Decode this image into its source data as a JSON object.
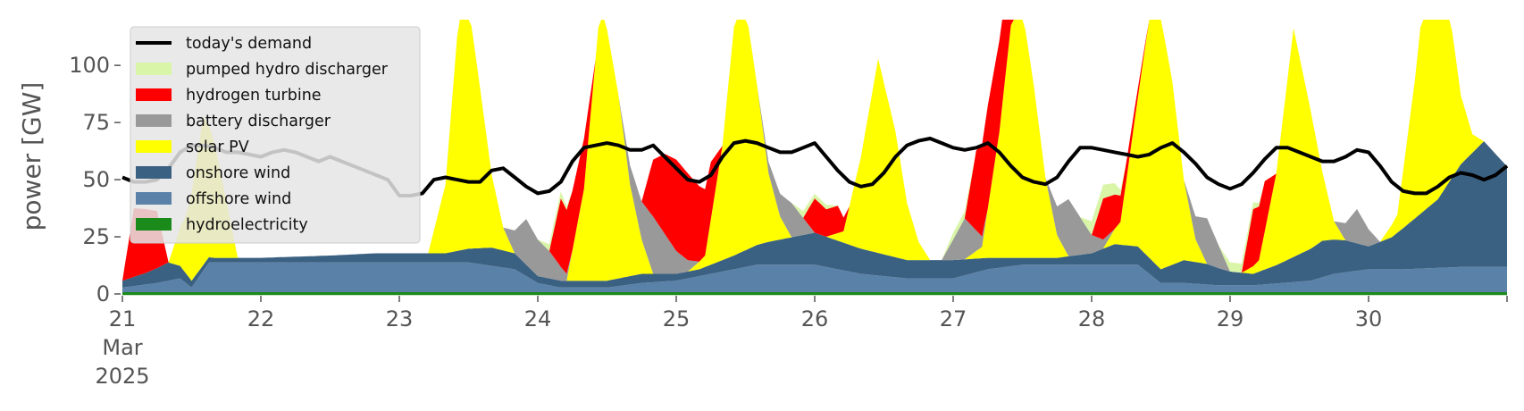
{
  "chart_data": {
    "type": "area",
    "ylabel": "power [GW]",
    "ylim": [
      0,
      120
    ],
    "xlim": [
      0,
      240
    ],
    "x_unit": "hours since 2025-03-21 00:00",
    "y_ticks": [
      0,
      25,
      50,
      75,
      100
    ],
    "x_ticks": [
      {
        "hour": 0,
        "label": "21",
        "sub": [
          "Mar",
          "2025"
        ]
      },
      {
        "hour": 24,
        "label": "22"
      },
      {
        "hour": 48,
        "label": "23"
      },
      {
        "hour": 72,
        "label": "24"
      },
      {
        "hour": 96,
        "label": "25"
      },
      {
        "hour": 120,
        "label": "26"
      },
      {
        "hour": 144,
        "label": "27"
      },
      {
        "hour": 168,
        "label": "28"
      },
      {
        "hour": 192,
        "label": "29"
      },
      {
        "hour": 216,
        "label": "30"
      },
      {
        "hour": 240,
        "label": ""
      }
    ],
    "legend_position": "upper-left",
    "legend": [
      {
        "label": "today's demand",
        "color": "#000000",
        "kind": "line"
      },
      {
        "label": "pumped hydro discharger",
        "color": "#d9f5a8",
        "kind": "patch"
      },
      {
        "label": "hydrogen turbine",
        "color": "#ff0000",
        "kind": "patch"
      },
      {
        "label": "battery discharger",
        "color": "#999999",
        "kind": "patch"
      },
      {
        "label": "solar PV",
        "color": "#ffff00",
        "kind": "patch"
      },
      {
        "label": "onshore wind",
        "color": "#3b6182",
        "kind": "patch"
      },
      {
        "label": "offshore wind",
        "color": "#5a82a8",
        "kind": "patch"
      },
      {
        "label": "hydroelectricity",
        "color": "#1a8a1a",
        "kind": "patch"
      }
    ],
    "series": [
      {
        "name": "hydroelectricity",
        "color": "#1a8a1a",
        "x": [
          0,
          48,
          96,
          144,
          192,
          240
        ],
        "values": [
          0.8,
          0.8,
          0.8,
          0.8,
          0.8,
          0.8
        ]
      },
      {
        "name": "offshore wind",
        "color": "#5a82a8",
        "x": [
          0,
          6,
          10,
          12,
          15,
          24,
          36,
          44,
          48,
          60,
          68,
          72,
          76,
          84,
          90,
          96,
          102,
          110,
          120,
          128,
          136,
          144,
          150,
          156,
          168,
          172,
          176,
          180,
          184,
          190,
          196,
          206,
          210,
          216,
          222,
          232,
          240
        ],
        "values": [
          2,
          4,
          6,
          2,
          13,
          13,
          13,
          13,
          13,
          13,
          10,
          4,
          2,
          2,
          4,
          5,
          8,
          12,
          12,
          8,
          6,
          6,
          10,
          12,
          12,
          12,
          12,
          4,
          4,
          3,
          3,
          5,
          8,
          10,
          10,
          11,
          11
        ]
      },
      {
        "name": "onshore wind",
        "color": "#3b6182",
        "x": [
          0,
          4,
          8,
          12,
          16,
          24,
          36,
          44,
          48,
          56,
          64,
          68,
          72,
          76,
          84,
          90,
          96,
          100,
          106,
          112,
          120,
          128,
          136,
          144,
          150,
          156,
          162,
          168,
          172,
          176,
          180,
          184,
          188,
          192,
          196,
          200,
          208,
          212,
          216,
          220,
          224,
          228,
          232,
          236,
          240
        ],
        "values": [
          3,
          5,
          8,
          3,
          2,
          2,
          3,
          4,
          4,
          4,
          8,
          7,
          3,
          3,
          3,
          4,
          3,
          3,
          6,
          10,
          14,
          11,
          8,
          8,
          5,
          3,
          3,
          5,
          9,
          8,
          6,
          10,
          9,
          6,
          5,
          8,
          16,
          14,
          10,
          14,
          22,
          30,
          45,
          55,
          44
        ]
      },
      {
        "name": "solar PV",
        "color": "#ffff00",
        "x": [
          0,
          2,
          5,
          8,
          11,
          14,
          16,
          18,
          20,
          22,
          24,
          26,
          29,
          32,
          35,
          38,
          40,
          42,
          44,
          46,
          48,
          50,
          53,
          56,
          59,
          62,
          64,
          66,
          68,
          70,
          72,
          74,
          77,
          80,
          83,
          86,
          88,
          90,
          92,
          94,
          96,
          98,
          101,
          104,
          107,
          110,
          112,
          114,
          116,
          118,
          120,
          122,
          125,
          128,
          131,
          134,
          136,
          138,
          140,
          142,
          144,
          146,
          149,
          152,
          155,
          158,
          160,
          162,
          164,
          166,
          168,
          170,
          173,
          176,
          179,
          182,
          184,
          186,
          188,
          190,
          192,
          194,
          197,
          200,
          203,
          206,
          208,
          210,
          212,
          214,
          216,
          218,
          221,
          224,
          227,
          230,
          232,
          234,
          236,
          238,
          240
        ],
        "values": [
          0,
          0,
          0,
          0,
          25,
          65,
          50,
          25,
          0,
          0,
          0,
          0,
          0,
          0,
          0,
          0,
          0,
          0,
          0,
          0,
          0,
          0,
          0,
          30,
          125,
          70,
          32,
          10,
          0,
          0,
          0,
          0,
          0,
          40,
          125,
          80,
          40,
          15,
          0,
          0,
          0,
          0,
          5,
          50,
          125,
          70,
          30,
          10,
          0,
          0,
          0,
          0,
          5,
          40,
          85,
          55,
          25,
          8,
          0,
          0,
          0,
          0,
          5,
          55,
          125,
          75,
          35,
          10,
          0,
          0,
          0,
          0,
          10,
          65,
          125,
          80,
          35,
          10,
          0,
          0,
          0,
          0,
          5,
          40,
          100,
          60,
          30,
          8,
          0,
          0,
          0,
          0,
          8,
          60,
          125,
          75,
          30,
          8,
          0,
          0,
          0
        ]
      },
      {
        "name": "battery discharger",
        "color": "#999999",
        "x": [
          0,
          48,
          66,
          70,
          74,
          78,
          86,
          92,
          96,
          100,
          110,
          116,
          120,
          136,
          142,
          146,
          150,
          160,
          164,
          168,
          172,
          184,
          188,
          192,
          200,
          210,
          214,
          218,
          240
        ],
        "values": [
          0,
          0,
          0,
          20,
          12,
          0,
          0,
          25,
          10,
          0,
          0,
          15,
          0,
          0,
          0,
          18,
          0,
          0,
          25,
          8,
          0,
          0,
          20,
          0,
          0,
          0,
          15,
          0,
          0
        ]
      },
      {
        "name": "hydrogen turbine",
        "color": "#ff0000",
        "x": [
          0,
          2,
          4,
          6,
          8,
          74,
          76,
          80,
          82,
          90,
          92,
          94,
          96,
          98,
          100,
          102,
          104,
          118,
          120,
          122,
          124,
          126,
          146,
          148,
          150,
          152,
          154,
          156,
          168,
          170,
          172,
          174,
          178,
          194,
          196,
          198,
          200,
          240
        ],
        "values": [
          0,
          30,
          28,
          25,
          0,
          0,
          30,
          22,
          0,
          0,
          25,
          35,
          40,
          38,
          33,
          25,
          0,
          0,
          15,
          12,
          12,
          0,
          0,
          35,
          45,
          40,
          36,
          0,
          0,
          18,
          15,
          8,
          0,
          0,
          25,
          22,
          0,
          0
        ]
      },
      {
        "name": "pumped hydro discharger",
        "color": "#d9f5a8",
        "x": [
          0,
          72,
          74,
          76,
          78,
          116,
          118,
          120,
          122,
          124,
          142,
          144,
          146,
          148,
          166,
          168,
          170,
          172,
          174,
          190,
          192,
          194,
          196,
          198,
          240
        ],
        "values": [
          0,
          0,
          3,
          3,
          0,
          0,
          3,
          2,
          2,
          0,
          0,
          3,
          3,
          0,
          0,
          6,
          6,
          5,
          0,
          0,
          4,
          4,
          3,
          0,
          0
        ]
      }
    ],
    "demand": {
      "name": "today's demand",
      "color": "#000000",
      "x": [
        0,
        2,
        4,
        6,
        8,
        10,
        12,
        14,
        16,
        18,
        20,
        22,
        24,
        26,
        28,
        30,
        32,
        34,
        36,
        38,
        40,
        42,
        44,
        46,
        48,
        50,
        52,
        54,
        56,
        58,
        60,
        62,
        64,
        66,
        68,
        70,
        72,
        74,
        76,
        78,
        80,
        82,
        84,
        86,
        88,
        90,
        92,
        94,
        96,
        98,
        100,
        102,
        104,
        106,
        108,
        110,
        112,
        114,
        116,
        118,
        120,
        122,
        124,
        126,
        128,
        130,
        132,
        134,
        136,
        138,
        140,
        142,
        144,
        146,
        148,
        150,
        152,
        154,
        156,
        158,
        160,
        162,
        164,
        166,
        168,
        170,
        172,
        174,
        176,
        178,
        180,
        182,
        184,
        186,
        188,
        190,
        192,
        194,
        196,
        198,
        200,
        202,
        204,
        206,
        208,
        210,
        212,
        214,
        216,
        218,
        220,
        222,
        224,
        226,
        228,
        230,
        232,
        234,
        236,
        238,
        240
      ],
      "values": [
        51,
        49,
        49,
        50,
        55,
        62,
        65,
        65,
        64,
        62,
        62,
        61,
        60,
        62,
        63,
        62,
        60,
        58,
        60,
        58,
        56,
        54,
        52,
        50,
        43,
        43,
        44,
        50,
        51,
        50,
        49,
        49,
        54,
        55,
        51,
        47,
        44,
        45,
        49,
        58,
        64,
        65,
        66,
        65,
        63,
        63,
        65,
        60,
        55,
        50,
        49,
        52,
        60,
        66,
        67,
        66,
        64,
        62,
        62,
        64,
        66,
        60,
        54,
        49,
        47,
        48,
        53,
        60,
        65,
        67,
        68,
        66,
        64,
        63,
        64,
        66,
        62,
        56,
        51,
        49,
        48,
        51,
        58,
        64,
        64,
        63,
        62,
        61,
        60,
        61,
        64,
        66,
        62,
        57,
        51,
        48,
        46,
        48,
        53,
        59,
        64,
        64,
        62,
        60,
        58,
        58,
        60,
        63,
        62,
        56,
        49,
        45,
        44,
        44,
        47,
        51,
        53,
        52,
        50,
        52,
        56
      ]
    }
  }
}
